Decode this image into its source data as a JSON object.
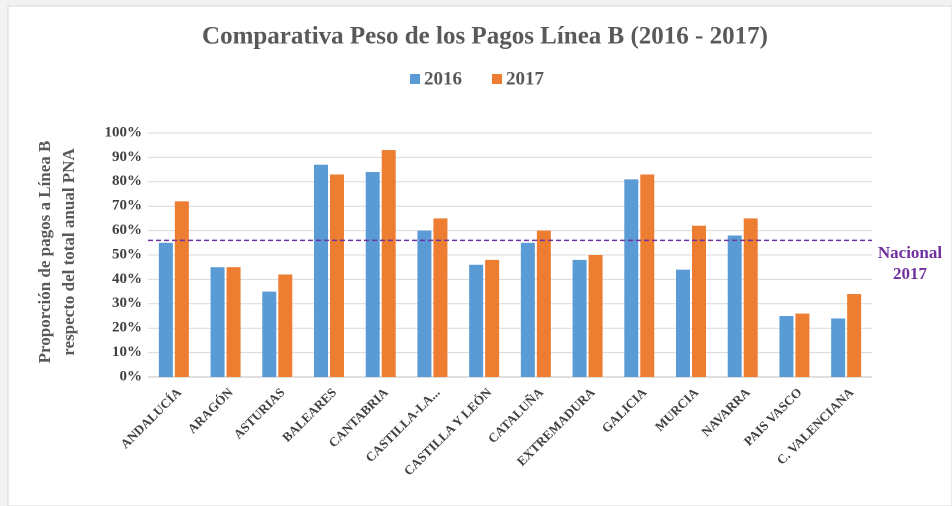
{
  "chart_data": {
    "type": "bar",
    "title": "Comparativa Peso de los Pagos Línea B (2016 - 2017)",
    "y_label_lines": [
      "Proporción de pagos a Línea B",
      "respecto del total anual PNA"
    ],
    "categories": [
      "ANDALUCÍA",
      "ARAGÓN",
      "ASTURIAS",
      "BALEARES",
      "CANTABRIA",
      "CASTILLA-LA...",
      "CASTILLA Y LEÓN",
      "CATALUÑA",
      "EXTREMADURA",
      "GALICIA",
      "MURCIA",
      "NAVARRA",
      "PAIS VASCO",
      "C. VALENCIANA"
    ],
    "series": [
      {
        "name": "2016",
        "color": "#5b9bd5",
        "values": [
          55,
          45,
          35,
          87,
          84,
          60,
          46,
          55,
          48,
          81,
          44,
          58,
          25,
          24
        ]
      },
      {
        "name": "2017",
        "color": "#ed7d31",
        "values": [
          72,
          45,
          42,
          83,
          93,
          65,
          48,
          60,
          50,
          83,
          62,
          65,
          26,
          34
        ]
      }
    ],
    "reference_line": {
      "value": 56,
      "color": "#7030a0",
      "label_lines": [
        "Nacional",
        "2017"
      ]
    },
    "ylim": [
      0,
      100
    ],
    "yticks": [
      {
        "value": 0,
        "label": "0%"
      },
      {
        "value": 10,
        "label": "10%"
      },
      {
        "value": 20,
        "label": "20%"
      },
      {
        "value": 30,
        "label": "30%"
      },
      {
        "value": 40,
        "label": "40%"
      },
      {
        "value": 50,
        "label": "50%"
      },
      {
        "value": 60,
        "label": "60%"
      },
      {
        "value": 70,
        "label": "70%"
      },
      {
        "value": 80,
        "label": "80%"
      },
      {
        "value": 90,
        "label": "90%"
      },
      {
        "value": 100,
        "label": "100%"
      }
    ],
    "grid": true,
    "legend": "top"
  }
}
